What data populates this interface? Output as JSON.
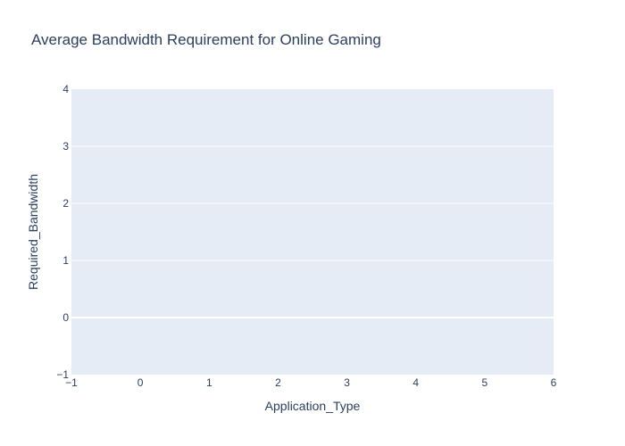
{
  "chart_data": {
    "type": "bar",
    "title": "Average Bandwidth Requirement for Online Gaming",
    "xlabel": "Application_Type",
    "ylabel": "Required_Bandwidth",
    "xlim": [
      -1,
      6
    ],
    "ylim": [
      -1,
      4
    ],
    "x_ticks": [
      "−1",
      "0",
      "1",
      "2",
      "3",
      "4",
      "5",
      "6"
    ],
    "x_tick_values": [
      -1,
      0,
      1,
      2,
      3,
      4,
      5,
      6
    ],
    "y_ticks": [
      "−1",
      "0",
      "1",
      "2",
      "3",
      "4"
    ],
    "y_tick_values": [
      -1,
      0,
      1,
      2,
      3,
      4
    ],
    "categories": [],
    "values": [],
    "grid": true,
    "plot_background": "#e5ecf6",
    "grid_color": "#ffffff",
    "text_color": "#2a3f5f"
  }
}
